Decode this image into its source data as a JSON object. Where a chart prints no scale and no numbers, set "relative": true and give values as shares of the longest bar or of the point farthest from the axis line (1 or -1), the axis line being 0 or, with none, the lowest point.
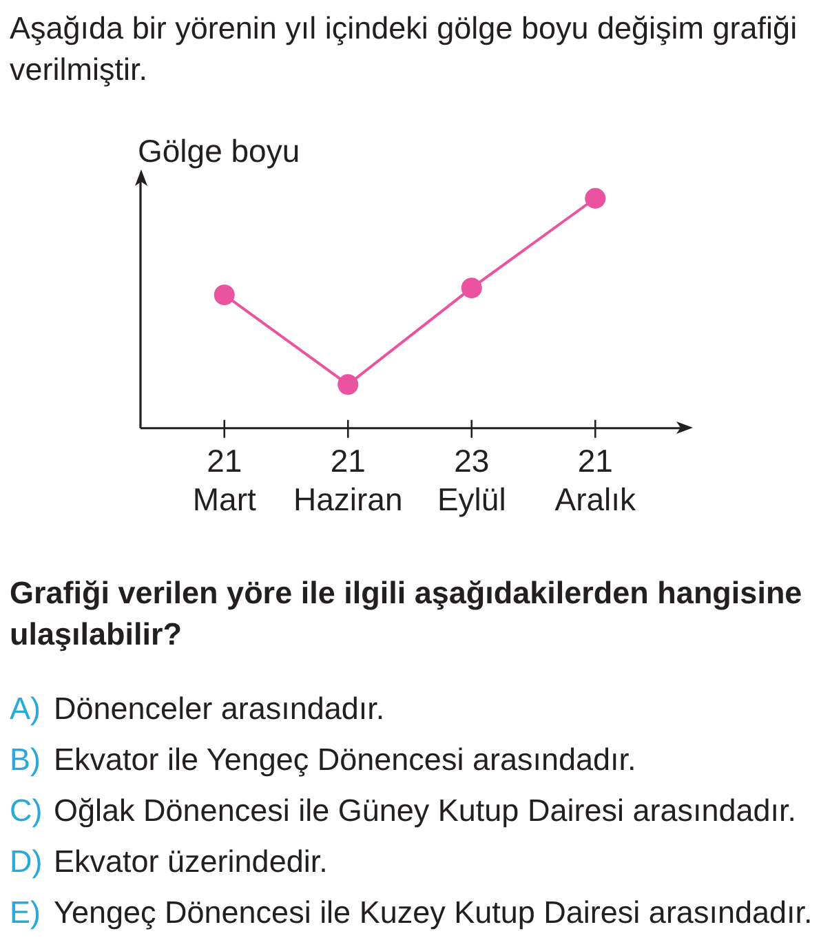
{
  "chart_data": {
    "type": "line",
    "title": "Aşağıda bir yörenin yıl içindeki gölge boyu değişim grafiği verilmiştir.",
    "ylabel": "Gölge boyu",
    "categories": [
      "21 Mart",
      "21 Haziran",
      "23 Eylül",
      "21 Aralık"
    ],
    "relative": true,
    "series": [
      {
        "color": "#e9539f",
        "values": [
          0.58,
          0.19,
          0.61,
          1
        ]
      }
    ],
    "marker": "circle",
    "line_style": "solid",
    "annotations": [
      "Grafiği verilen yöre ile ilgili aşağıdakilerden hangisine ulaşılabilir?",
      "A) Dönenceler arasındadır.",
      "B) Ekvator ile Yengeç Dönencesi arasındadır.",
      "C) Oğlak Dönencesi ile Güney Kutup Dairesi arasındadır.",
      "D) Ekvator üzerindedir.",
      "E) Yengeç Dönencesi ile Kuzey Kutup Dairesi arasındadır."
    ]
  }
}
